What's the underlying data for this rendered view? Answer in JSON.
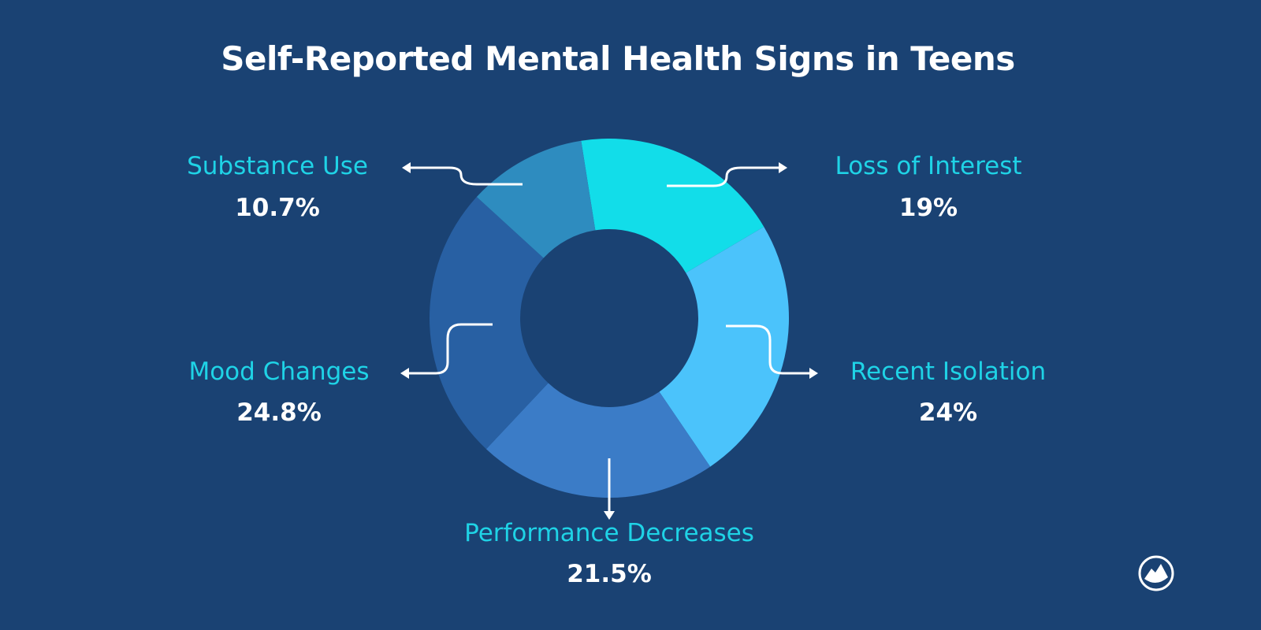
{
  "chart_data": {
    "type": "pie",
    "donut": true,
    "title": "Self-Reported Mental Health Signs in Teens",
    "categories": [
      "Loss of Interest",
      "Recent Isolation",
      "Performance Decreases",
      "Mood Changes",
      "Substance Use"
    ],
    "values": [
      19,
      24,
      21.5,
      24.8,
      10.7
    ],
    "value_labels": [
      "19%",
      "24%",
      "21.5%",
      "24.8%",
      "10.7%"
    ],
    "colors": [
      "#12dde9",
      "#4bc3fb",
      "#3b7cc7",
      "#2860a3",
      "#2e8cbf"
    ],
    "legend": "none"
  },
  "background": "#1a4273",
  "logo": "mountain-circle-logo"
}
